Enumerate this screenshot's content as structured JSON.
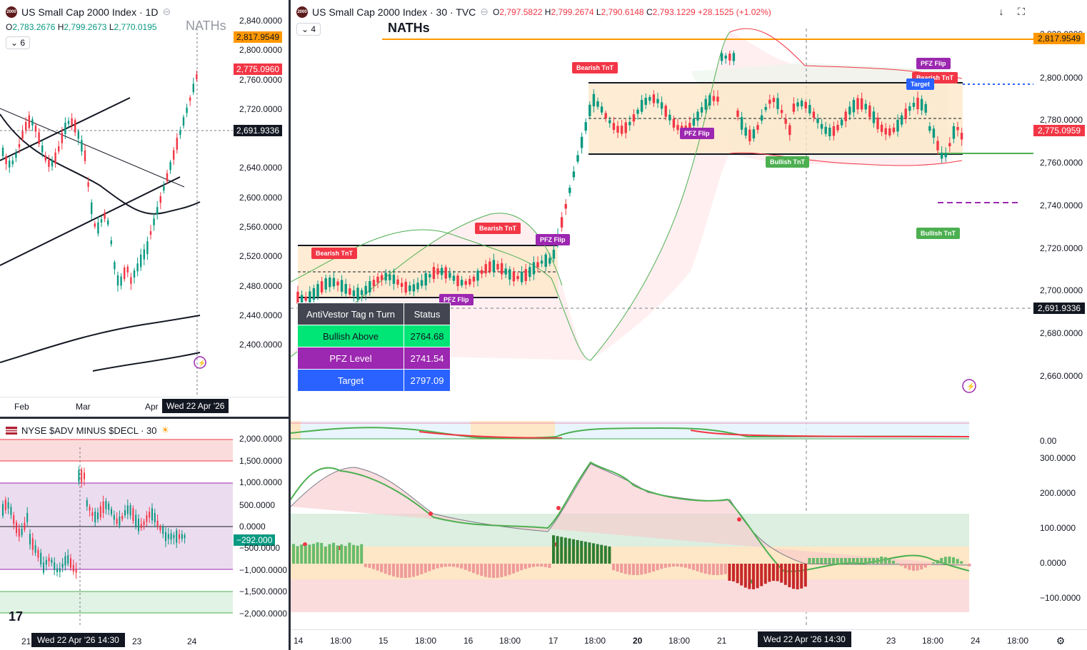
{
  "left_chart": {
    "title": "US Small Cap 2000 Index · 1D",
    "ohlc": {
      "o_label": "O",
      "o": "2,783.2676",
      "h_label": "H",
      "h": "2,799.2673",
      "l_label": "L",
      "l": "2,770.0195"
    },
    "collapse_count": "6",
    "naths_label": "NATHs",
    "price_axis": [
      "2,840.0000",
      "2,800.0000",
      "2,760.0000",
      "2,720.0000",
      "2,640.0000",
      "2,600.0000",
      "2,560.0000",
      "2,520.0000",
      "2,480.0000",
      "2,440.0000",
      "2,400.0000"
    ],
    "tag_naths": "2,817.9549",
    "tag_last": "2,775.0960",
    "tag_cross": "2,691.9336",
    "time_axis": [
      "Feb",
      "Mar",
      "Apr"
    ],
    "time_cursor": "Wed 22 Apr '26"
  },
  "adv_chart": {
    "title": "NYSE $ADV MINUS $DECL · 30",
    "price_axis": [
      "2,000.0000",
      "1,500.0000",
      "1,000.0000",
      "500.0000",
      "0.0000",
      "−500.0000",
      "−1,000.0000",
      "−1,500.0000",
      "−2,000.0000"
    ],
    "tag_last": "−292.000",
    "time_axis": [
      "21",
      "23",
      "24"
    ],
    "time_cursor": "Wed 22 Apr '26  14:30"
  },
  "main_chart": {
    "title": "US Small Cap 2000 Index · 30 · TVC",
    "ohlc": {
      "o_label": "O",
      "o": "2,797.5822",
      "h_label": "H",
      "h": "2,799.2674",
      "l_label": "L",
      "l": "2,790.6148",
      "c_label": "C",
      "c": "2,793.1229",
      "chg": "+28.1525 (+1.02%)"
    },
    "collapse_count": "4",
    "naths_label": "NATHs",
    "price_axis": [
      "2,820.0000",
      "2,800.0000",
      "2,780.0000",
      "2,760.0000",
      "2,740.0000",
      "2,720.0000",
      "2,700.0000",
      "2,680.0000",
      "2,660.0000"
    ],
    "tag_naths": "2,817.9549",
    "tag_last": "2,775.0959",
    "tag_cross": "2,691.9336",
    "osc_axis": [
      "0.00",
      "300.0000",
      "200.0000",
      "100.0000",
      "0.0000",
      "−100.0000"
    ],
    "time_axis": [
      "14",
      "18:00",
      "15",
      "18:00",
      "16",
      "18:00",
      "17",
      "18:00",
      "20",
      "18:00",
      "21",
      "23",
      "18:00",
      "24",
      "18:00"
    ],
    "time_cursor": "Wed 22 Apr '26  14:30",
    "labels": {
      "bearish1": "Bearish TnT",
      "bearish2": "Bearish TnT",
      "bearish3": "Bearish TnT",
      "bearish4": "Bearish TnT",
      "pfz1": "PFZ Flip",
      "pfz2": "PFZ Flip",
      "pfz3": "PFZ Flip",
      "pfz4": "PFZ Flip",
      "bullish1": "Bullish TnT",
      "bullish2": "Bullish TnT",
      "target": "Target"
    }
  },
  "status_table": {
    "header": [
      "AntiVestor Tag n Turn",
      "Status"
    ],
    "rows": [
      {
        "label": "Bullish Above",
        "value": "2764.68",
        "color": "#00e676"
      },
      {
        "label": "PFZ Level",
        "value": "2741.54",
        "color": "#9c27b0"
      },
      {
        "label": "Target",
        "value": "2797.09",
        "color": "#2962ff"
      }
    ]
  },
  "colors": {
    "up": "#089981",
    "down": "#f23645",
    "naths": "#ff9800",
    "dark": "#131722"
  }
}
